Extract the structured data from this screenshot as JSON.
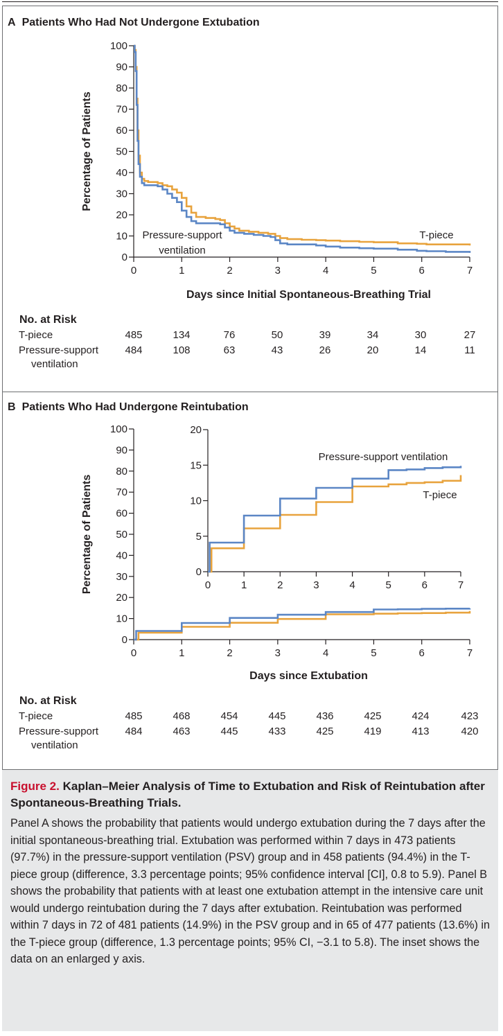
{
  "figure": {
    "caption_label": "Figure 2.",
    "caption_title": "Kaplan–Meier Analysis of Time to Extubation and Risk of Reintubation after Spontaneous-Breathing Trials.",
    "caption_body": "Panel A shows the probability that patients would undergo extubation during the 7 days after the initial spontaneous-breathing trial. Extubation was performed within 7 days in 473 patients (97.7%) in the pressure-support ventilation (PSV) group and in 458 patients (94.4%) in the T-piece group (difference, 3.3 percentage points; 95% confidence interval [CI], 0.8 to 5.9). Panel B shows the probability that patients with at least one extubation attempt in the intensive care unit would undergo reintubation during the 7 days after extubation. Reintubation was performed within 7 days in 72 of 481 patients (14.9%) in the PSV group and in 65 of 477 patients (13.6%) in the T-piece group (difference, 1.3 percentage points; 95% CI, −3.1 to 5.8). The inset shows the data on an enlarged y axis."
  },
  "colors": {
    "t_piece": "#e8a33d",
    "psv": "#5b86c5",
    "axis": "#231f20"
  },
  "panel_a": {
    "letter": "A",
    "title": "Patients Who Had Not Undergone Extubation",
    "risk": {
      "header": "No. at Risk",
      "rows": [
        {
          "label": "T-piece",
          "label2": "",
          "values": [
            485,
            134,
            76,
            50,
            39,
            34,
            30,
            27
          ]
        },
        {
          "label": "Pressure-support",
          "label2": "ventilation",
          "values": [
            484,
            108,
            63,
            43,
            26,
            20,
            14,
            11
          ]
        }
      ]
    }
  },
  "panel_b": {
    "letter": "B",
    "title": "Patients Who Had Undergone Reintubation",
    "risk": {
      "header": "No. at Risk",
      "rows": [
        {
          "label": "T-piece",
          "label2": "",
          "values": [
            485,
            468,
            454,
            445,
            436,
            425,
            424,
            423
          ]
        },
        {
          "label": "Pressure-support",
          "label2": "ventilation",
          "values": [
            484,
            463,
            445,
            433,
            425,
            419,
            413,
            420
          ]
        }
      ]
    }
  },
  "chart_data": [
    {
      "id": "panel_a",
      "type": "line",
      "step": true,
      "title": "Patients Who Had Not Undergone Extubation",
      "xlabel": "Days since Initial Spontaneous-Breathing Trial",
      "ylabel": "Percentage of Patients",
      "xlim": [
        0,
        7
      ],
      "ylim": [
        0,
        100
      ],
      "xticks": [
        0,
        1,
        2,
        3,
        4,
        5,
        6,
        7
      ],
      "yticks": [
        0,
        10,
        20,
        30,
        40,
        50,
        60,
        70,
        80,
        90,
        100
      ],
      "grid": false,
      "annotations": [
        {
          "text": "Pressure-support",
          "series": "psv"
        },
        {
          "text": "ventilation",
          "series": "psv"
        },
        {
          "text": "T-piece",
          "series": "t_piece"
        }
      ],
      "series": [
        {
          "key": "t_piece",
          "color": "#e8a33d",
          "x": [
            0,
            0.02,
            0.04,
            0.06,
            0.08,
            0.1,
            0.13,
            0.17,
            0.22,
            0.3,
            0.5,
            0.6,
            0.7,
            0.8,
            0.9,
            1.0,
            1.1,
            1.2,
            1.3,
            1.5,
            1.7,
            1.8,
            1.9,
            2.0,
            2.1,
            2.2,
            2.4,
            2.6,
            2.8,
            2.95,
            3.05,
            3.2,
            3.5,
            3.8,
            4.0,
            4.3,
            4.7,
            5.0,
            5.5,
            5.9,
            6.1,
            6.5,
            7.0
          ],
          "y": [
            100,
            98,
            90,
            75,
            60,
            48,
            40,
            37,
            36,
            35.5,
            35,
            34,
            33.5,
            32,
            30.5,
            28,
            24,
            21,
            19,
            18.5,
            18,
            17.5,
            16,
            14.5,
            13.5,
            12.5,
            12,
            11.5,
            11,
            10,
            9,
            8.5,
            8.2,
            8,
            7.8,
            7.5,
            7.2,
            7,
            6.5,
            6.3,
            6,
            6,
            5.5
          ]
        },
        {
          "key": "psv",
          "color": "#5b86c5",
          "x": [
            0,
            0.02,
            0.04,
            0.06,
            0.08,
            0.1,
            0.13,
            0.17,
            0.22,
            0.3,
            0.5,
            0.6,
            0.7,
            0.8,
            0.9,
            1.0,
            1.1,
            1.2,
            1.3,
            1.5,
            1.7,
            1.8,
            1.9,
            2.0,
            2.1,
            2.3,
            2.5,
            2.7,
            2.85,
            2.95,
            3.05,
            3.2,
            3.5,
            3.8,
            4.0,
            4.3,
            4.7,
            5.0,
            5.5,
            5.9,
            6.1,
            6.5,
            7.0
          ],
          "y": [
            100,
            97,
            88,
            72,
            55,
            44,
            38,
            35,
            34,
            34,
            33.5,
            32,
            30,
            28,
            26,
            22,
            19,
            17,
            16,
            16,
            16,
            15.5,
            14,
            12.5,
            11.5,
            11,
            10.5,
            10,
            9.5,
            8,
            6.5,
            6,
            6,
            5.5,
            5,
            4.5,
            4.2,
            4,
            3.5,
            3,
            2.8,
            2.5,
            2
          ]
        }
      ]
    },
    {
      "id": "panel_b",
      "type": "line",
      "step": true,
      "title": "Patients Who Had Undergone Reintubation",
      "xlabel": "Days since Extubation",
      "ylabel": "Percentage of Patients",
      "xlim": [
        0,
        7
      ],
      "ylim": [
        0,
        100
      ],
      "xticks": [
        0,
        1,
        2,
        3,
        4,
        5,
        6,
        7
      ],
      "yticks": [
        0,
        10,
        20,
        30,
        40,
        50,
        60,
        70,
        80,
        90,
        100
      ],
      "grid": false,
      "series": [
        {
          "key": "t_piece",
          "color": "#e8a33d",
          "x": [
            0,
            0.1,
            1.0,
            2.0,
            3.0,
            4.0,
            5.0,
            5.5,
            6.0,
            6.5,
            7.0
          ],
          "y": [
            0,
            3.3,
            6.1,
            8.0,
            9.8,
            12.0,
            12.3,
            12.5,
            12.6,
            12.8,
            13.6
          ]
        },
        {
          "key": "psv",
          "color": "#5b86c5",
          "x": [
            0,
            0.05,
            1.0,
            2.0,
            3.0,
            4.0,
            5.0,
            5.5,
            6.0,
            6.5,
            7.0
          ],
          "y": [
            0,
            4.1,
            7.9,
            10.3,
            11.8,
            13.1,
            14.3,
            14.4,
            14.6,
            14.7,
            14.9
          ]
        }
      ]
    },
    {
      "id": "panel_b_inset",
      "type": "line",
      "step": true,
      "title": "",
      "xlabel": "",
      "ylabel": "",
      "xlim": [
        0,
        7
      ],
      "ylim": [
        0,
        20
      ],
      "xticks": [
        0,
        1,
        2,
        3,
        4,
        5,
        6,
        7
      ],
      "yticks": [
        0,
        5,
        10,
        15,
        20
      ],
      "grid": false,
      "annotations": [
        {
          "text": "Pressure-support ventilation",
          "series": "psv"
        },
        {
          "text": "T-piece",
          "series": "t_piece"
        }
      ],
      "series": [
        {
          "key": "t_piece",
          "color": "#e8a33d",
          "x": [
            0,
            0.1,
            1.0,
            2.0,
            3.0,
            4.0,
            5.0,
            5.5,
            6.0,
            6.5,
            7.0
          ],
          "y": [
            0,
            3.3,
            6.1,
            8.0,
            9.8,
            12.0,
            12.3,
            12.5,
            12.6,
            12.8,
            13.6
          ]
        },
        {
          "key": "psv",
          "color": "#5b86c5",
          "x": [
            0,
            0.05,
            1.0,
            2.0,
            3.0,
            4.0,
            5.0,
            5.5,
            6.0,
            6.5,
            7.0
          ],
          "y": [
            0,
            4.1,
            7.9,
            10.3,
            11.8,
            13.1,
            14.3,
            14.4,
            14.6,
            14.7,
            14.9
          ]
        }
      ]
    }
  ]
}
